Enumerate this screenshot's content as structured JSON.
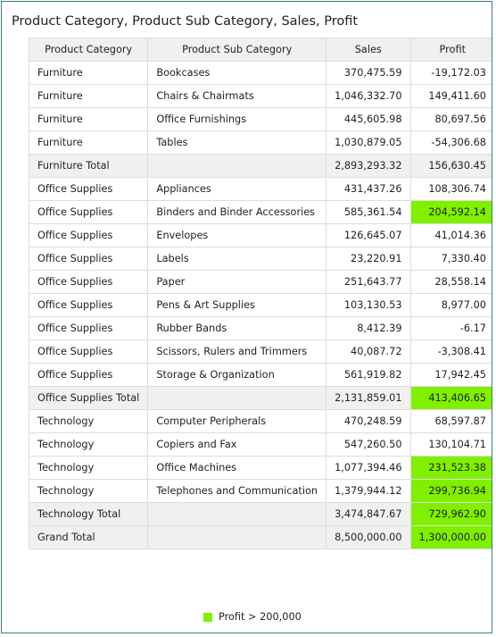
{
  "title": "Product Category, Product Sub Category, Sales, Profit",
  "table": {
    "headers": [
      "Product Category",
      "Product Sub Category",
      "Sales",
      "Profit"
    ],
    "highlight_color": "#80f000",
    "total_background": "#f0f0f0",
    "rows": [
      {
        "category": "Furniture",
        "sub_category": "Bookcases",
        "sales": "370,475.59",
        "profit": "-19,172.03"
      },
      {
        "category": "Furniture",
        "sub_category": "Chairs & Chairmats",
        "sales": "1,046,332.70",
        "profit": "149,411.60"
      },
      {
        "category": "Furniture",
        "sub_category": "Office Furnishings",
        "sales": "445,605.98",
        "profit": "80,697.56"
      },
      {
        "category": "Furniture",
        "sub_category": "Tables",
        "sales": "1,030,879.05",
        "profit": "-54,306.68"
      },
      {
        "category": "Furniture Total",
        "sales": "2,893,293.32",
        "profit": "156,630.45"
      },
      {
        "category": "Office Supplies",
        "sub_category": "Appliances",
        "sales": "431,437.26",
        "profit": "108,306.74"
      },
      {
        "category": "Office Supplies",
        "sub_category": "Binders and Binder Accessories",
        "sales": "585,361.54",
        "profit": "204,592.14",
        "highlight": true
      },
      {
        "category": "Office Supplies",
        "sub_category": "Envelopes",
        "sales": "126,645.07",
        "profit": "41,014.36"
      },
      {
        "category": "Office Supplies",
        "sub_category": "Labels",
        "sales": "23,220.91",
        "profit": "7,330.40"
      },
      {
        "category": "Office Supplies",
        "sub_category": "Paper",
        "sales": "251,643.77",
        "profit": "28,558.14"
      },
      {
        "category": "Office Supplies",
        "sub_category": "Pens & Art Supplies",
        "sales": "103,130.53",
        "profit": "8,977.00"
      },
      {
        "category": "Office Supplies",
        "sub_category": "Rubber Bands",
        "sales": "8,412.39",
        "profit": "-6.17"
      },
      {
        "category": "Office Supplies",
        "sub_category": "Scissors, Rulers and Trimmers",
        "sales": "40,087.72",
        "profit": "-3,308.41"
      },
      {
        "category": "Office Supplies",
        "sub_category": "Storage & Organization",
        "sales": "561,919.82",
        "profit": "17,942.45"
      },
      {
        "category": "Office Supplies Total",
        "sales": "2,131,859.01",
        "profit": "413,406.65",
        "highlight": true
      },
      {
        "category": "Technology",
        "sub_category": "Computer Peripherals",
        "sales": "470,248.59",
        "profit": "68,597.87"
      },
      {
        "category": "Technology",
        "sub_category": "Copiers and Fax",
        "sales": "547,260.50",
        "profit": "130,104.71"
      },
      {
        "category": "Technology",
        "sub_category": "Office Machines",
        "sales": "1,077,394.46",
        "profit": "231,523.38",
        "highlight": true
      },
      {
        "category": "Technology",
        "sub_category": "Telephones and Communication",
        "sales": "1,379,944.12",
        "profit": "299,736.94",
        "highlight": true
      },
      {
        "category": "Technology Total",
        "sales": "3,474,847.67",
        "profit": "729,962.90",
        "highlight": true
      },
      {
        "category": "Grand Total",
        "sales": "8,500,000.00",
        "profit": "1,300,000.00",
        "highlight": true
      }
    ]
  },
  "legend": {
    "label": "Profit > 200,000",
    "color": "#80f000"
  }
}
